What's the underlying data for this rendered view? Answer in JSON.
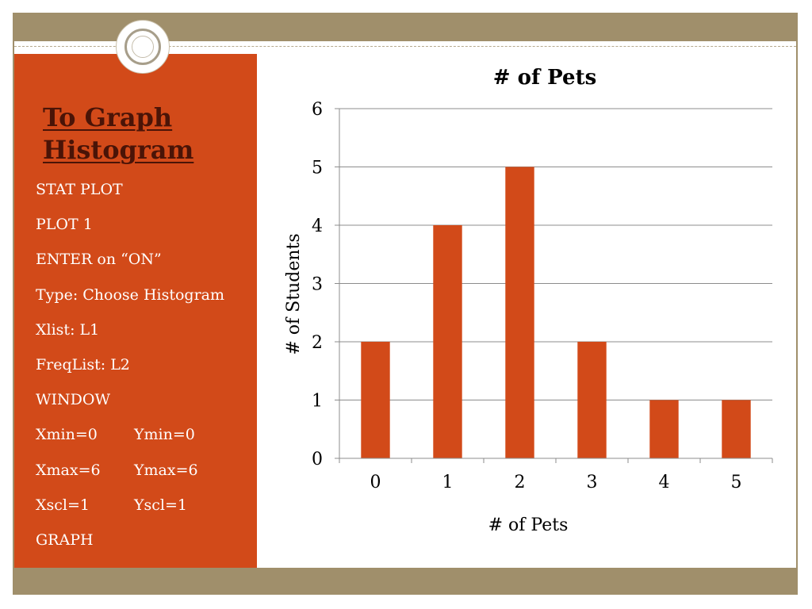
{
  "slide": {
    "title_line1": "To Graph",
    "title_line2": "Histogram",
    "steps": [
      "STAT PLOT",
      "PLOT 1",
      "ENTER on “ON”",
      "Type:  Choose Histogram",
      "Xlist:  L1",
      "FreqList:  L2",
      "WINDOW"
    ],
    "window_settings": [
      {
        "left": "Xmin=0",
        "right": "Ymin=0"
      },
      {
        "left": "Xmax=6",
        "right": "Ymax=6"
      },
      {
        "left": "Xscl=1",
        "right": "Yscl=1"
      }
    ],
    "final_step": "GRAPH"
  },
  "theme": {
    "panel_color": "#d24a19",
    "title_color": "#4a1407",
    "frame_color": "#a08f6b",
    "bar_color": "#d24a19"
  },
  "chart_data": {
    "type": "bar",
    "title": "# of Pets",
    "xlabel": "# of Pets",
    "ylabel": "# of Students",
    "categories": [
      "0",
      "1",
      "2",
      "3",
      "4",
      "5"
    ],
    "values": [
      2,
      4,
      5,
      2,
      1,
      1
    ],
    "ylim": [
      0,
      6
    ],
    "yticks": [
      0,
      1,
      2,
      3,
      4,
      5,
      6
    ],
    "grid": true,
    "legend": "none"
  }
}
